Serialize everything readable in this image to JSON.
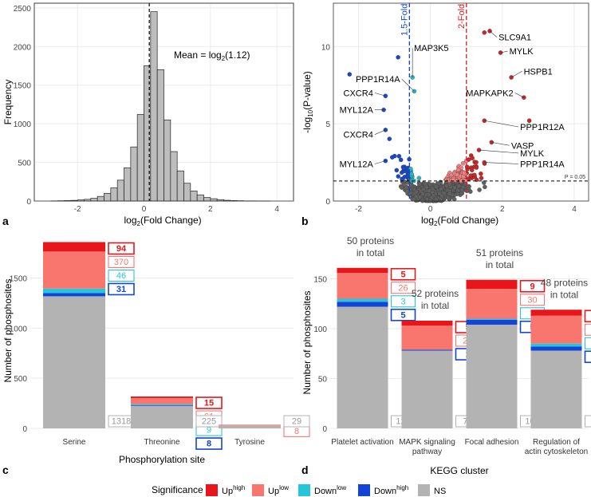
{
  "panels": {
    "a": "a",
    "b": "b",
    "c": "c",
    "d": "d"
  },
  "colors": {
    "up_high": "#e8161a",
    "up_low": "#f8766d",
    "down_low": "#26c6da",
    "down_high": "#1244d8",
    "ns": "#b3b3b3",
    "grid": "#ebebeb"
  },
  "chart_data": [
    {
      "id": "a",
      "type": "bar",
      "title": "",
      "xlabel": "log2(Fold Change)",
      "ylabel": "Frequency",
      "xlim": [
        -3.3,
        4.5
      ],
      "ylim": [
        0,
        2560
      ],
      "xticks": [
        -2,
        0,
        2,
        4
      ],
      "yticks": [
        0,
        500,
        1000,
        1500,
        2000,
        2500
      ],
      "xtick_labels": [
        "-2",
        "0",
        "2",
        "4"
      ],
      "ytick_labels": [
        "0",
        "500",
        "1000",
        "1500",
        "2000",
        "2500"
      ],
      "bin_width": 0.2,
      "bin_start": -2.8,
      "counts": [
        2,
        4,
        6,
        9,
        14,
        22,
        35,
        60,
        100,
        170,
        270,
        430,
        700,
        1120,
        1750,
        2450,
        1700,
        1050,
        640,
        390,
        230,
        130,
        80,
        45,
        30,
        18,
        10,
        6,
        4,
        2,
        2,
        1,
        1,
        0,
        0,
        0
      ],
      "mean_line": 0.16,
      "annotation": {
        "prefix": "Mean = log",
        "sub": "2",
        "suffix": "(1.12)"
      }
    },
    {
      "id": "b",
      "type": "scatter",
      "xlabel": "log2(Fold Change)",
      "ylabel": "-log10(P-value)",
      "xlim": [
        -2.7,
        4.4
      ],
      "ylim": [
        0,
        12.8
      ],
      "xticks": [
        -2,
        0,
        2,
        4
      ],
      "yticks": [
        0,
        5,
        10
      ],
      "xtick_labels": [
        "-2",
        "0",
        "2",
        "4"
      ],
      "ytick_labels": [
        "0",
        "5",
        "10"
      ],
      "vline_blue": -0.585,
      "vline_red": 1.0,
      "vline_blue_label": "1.5-Fold",
      "vline_red_label": "2-Fold",
      "hline": 1.3,
      "hline_label": "P = 0.05",
      "labels": [
        {
          "text": "SLC9A1",
          "x": 1.65,
          "y": 11.0,
          "tx": 1.85,
          "ty": 10.6
        },
        {
          "text": "MYLK",
          "x": 1.95,
          "y": 9.6,
          "tx": 2.15,
          "ty": 9.7
        },
        {
          "text": "MAP3K5",
          "x": -0.5,
          "y": 8.0,
          "tx": -0.5,
          "ty": 9.9
        },
        {
          "text": "HSPB1",
          "x": 2.25,
          "y": 8.0,
          "tx": 2.55,
          "ty": 8.4
        },
        {
          "text": "PPP1R14A",
          "x": -0.45,
          "y": 7.1,
          "tx": -0.8,
          "ty": 7.9
        },
        {
          "text": "MAPKAPK2",
          "x": 2.6,
          "y": 6.7,
          "tx": 2.35,
          "ty": 7.0
        },
        {
          "text": "CXCR4",
          "x": -1.25,
          "y": 6.8,
          "tx": -1.55,
          "ty": 7.0
        },
        {
          "text": "MYL12A",
          "x": -1.3,
          "y": 5.9,
          "tx": -1.55,
          "ty": 5.9
        },
        {
          "text": "PPP1R12A",
          "x": 1.5,
          "y": 5.2,
          "tx": 2.45,
          "ty": 4.8
        },
        {
          "text": "CXCR4",
          "x": -1.25,
          "y": 4.6,
          "tx": -1.55,
          "ty": 4.3
        },
        {
          "text": "VASP",
          "x": 1.7,
          "y": 3.8,
          "tx": 2.2,
          "ty": 3.6
        },
        {
          "text": "MYLK",
          "x": 1.35,
          "y": 3.3,
          "tx": 2.45,
          "ty": 3.1
        },
        {
          "text": "PPP1R14A",
          "x": 1.5,
          "y": 2.5,
          "tx": 2.45,
          "ty": 2.4
        },
        {
          "text": "MYL12A",
          "x": -1.25,
          "y": 2.6,
          "tx": -1.55,
          "ty": 2.4
        }
      ]
    },
    {
      "id": "c",
      "type": "bar",
      "stacked": true,
      "xlabel": "Phosphorylation site",
      "ylabel": "Number of phosphosites",
      "ylim": [
        0,
        1950
      ],
      "yticks": [
        0,
        500,
        1000,
        1500
      ],
      "ytick_labels": [
        "0",
        "500",
        "1000",
        "1500"
      ],
      "categories": [
        "Serine",
        "Threonine",
        "Tyrosine"
      ],
      "series": [
        {
          "name": "NS",
          "values": [
            1318,
            225,
            29
          ]
        },
        {
          "name": "Downhigh",
          "values": [
            31,
            8,
            0
          ]
        },
        {
          "name": "Downlow",
          "values": [
            46,
            9,
            0
          ]
        },
        {
          "name": "Uplow",
          "values": [
            370,
            61,
            8
          ]
        },
        {
          "name": "Uphigh",
          "values": [
            94,
            15,
            0
          ]
        }
      ]
    },
    {
      "id": "d",
      "type": "bar",
      "stacked": true,
      "xlabel": "KEGG cluster",
      "ylabel": "Number of phosphosites",
      "ylim": [
        0,
        172
      ],
      "yticks": [
        0,
        50,
        100,
        150
      ],
      "ytick_labels": [
        "0",
        "50",
        "100",
        "150"
      ],
      "categories": [
        [
          "Platelet activation"
        ],
        [
          "MAPK signaling",
          "pathway"
        ],
        [
          "Focal adhesion"
        ],
        [
          "Regulation of",
          "actin cytoskeleton"
        ]
      ],
      "totals": [
        [
          "50 proteins",
          "in total"
        ],
        [
          "52 proteins",
          "in total"
        ],
        [
          "51 proteins",
          "in total"
        ],
        [
          "48 proteins",
          "in total"
        ]
      ],
      "series": [
        {
          "name": "NS",
          "values": [
            122,
            78,
            104,
            78
          ]
        },
        {
          "name": "Downhigh",
          "values": [
            5,
            1,
            5,
            4
          ]
        },
        {
          "name": "Downlow",
          "values": [
            3,
            0,
            1,
            3
          ]
        },
        {
          "name": "Uplow",
          "values": [
            26,
            24,
            30,
            28
          ]
        },
        {
          "name": "Uphigh",
          "values": [
            5,
            5,
            9,
            6
          ]
        }
      ]
    }
  ],
  "legend": {
    "title": "Significance",
    "items": [
      {
        "key": "up_high",
        "base": "Up",
        "sup": "high"
      },
      {
        "key": "up_low",
        "base": "Up",
        "sup": "low"
      },
      {
        "key": "down_low",
        "base": "Down",
        "sup": "low"
      },
      {
        "key": "down_high",
        "base": "Down",
        "sup": "high"
      },
      {
        "key": "ns",
        "base": "NS",
        "sup": ""
      }
    ]
  }
}
